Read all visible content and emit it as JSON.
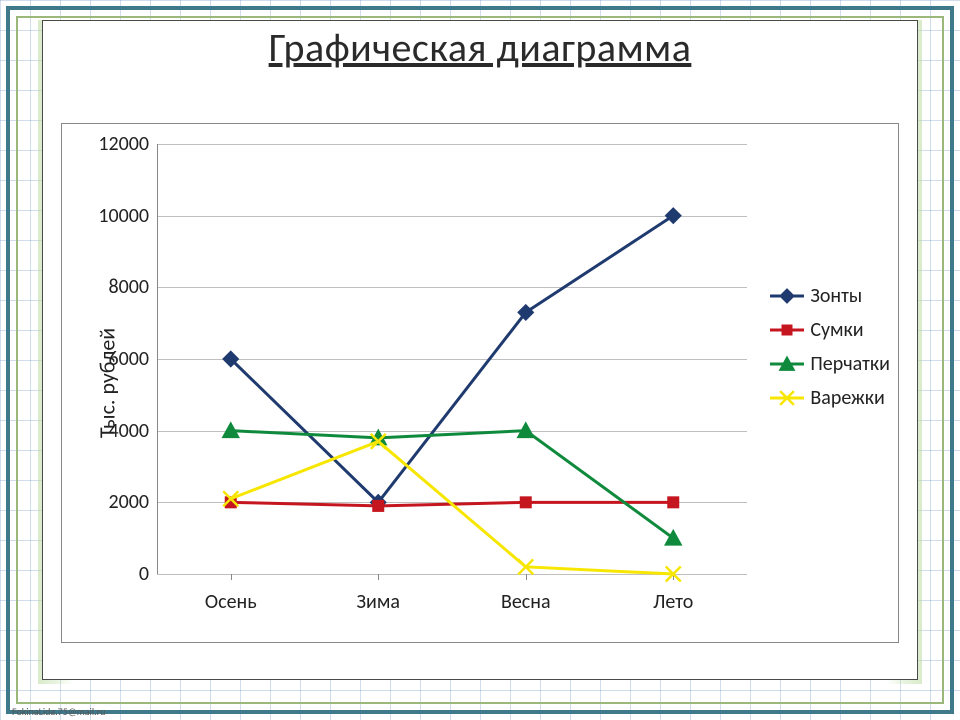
{
  "title": "Графическая диаграмма",
  "ylabel": "Тыс. рублей",
  "chart": {
    "type": "line",
    "categories": [
      "Осень",
      "Зима",
      "Весна",
      "Лето"
    ],
    "ylim": [
      0,
      12000
    ],
    "ytick_step": 2000,
    "yticks": [
      0,
      2000,
      4000,
      6000,
      8000,
      10000,
      12000
    ],
    "grid_color": "#bfbfbf",
    "axis_color": "#888888",
    "background_color": "#ffffff",
    "line_width": 3,
    "marker_size": 12,
    "label_fontsize": 20,
    "title_fontsize": 40,
    "series": [
      {
        "name": "Зонты",
        "color": "#1f3a6e",
        "marker": "diamond",
        "values": [
          6000,
          2000,
          7300,
          10000
        ]
      },
      {
        "name": "Сумки",
        "color": "#c51620",
        "marker": "square",
        "values": [
          2000,
          1900,
          2000,
          2000
        ]
      },
      {
        "name": "Перчатки",
        "color": "#0f8a3d",
        "marker": "triangle",
        "values": [
          4000,
          3800,
          4000,
          1000
        ]
      },
      {
        "name": "Варежки",
        "color": "#f7e600",
        "marker": "x",
        "values": [
          2100,
          3700,
          200,
          0
        ]
      }
    ]
  },
  "frame": {
    "outer_border_color": "#3e7a8c",
    "inner_border_color": "#9ab87a",
    "grid_paper_color": "#5a8fbf"
  },
  "footer": "FokinaLida.75@mail.ru"
}
